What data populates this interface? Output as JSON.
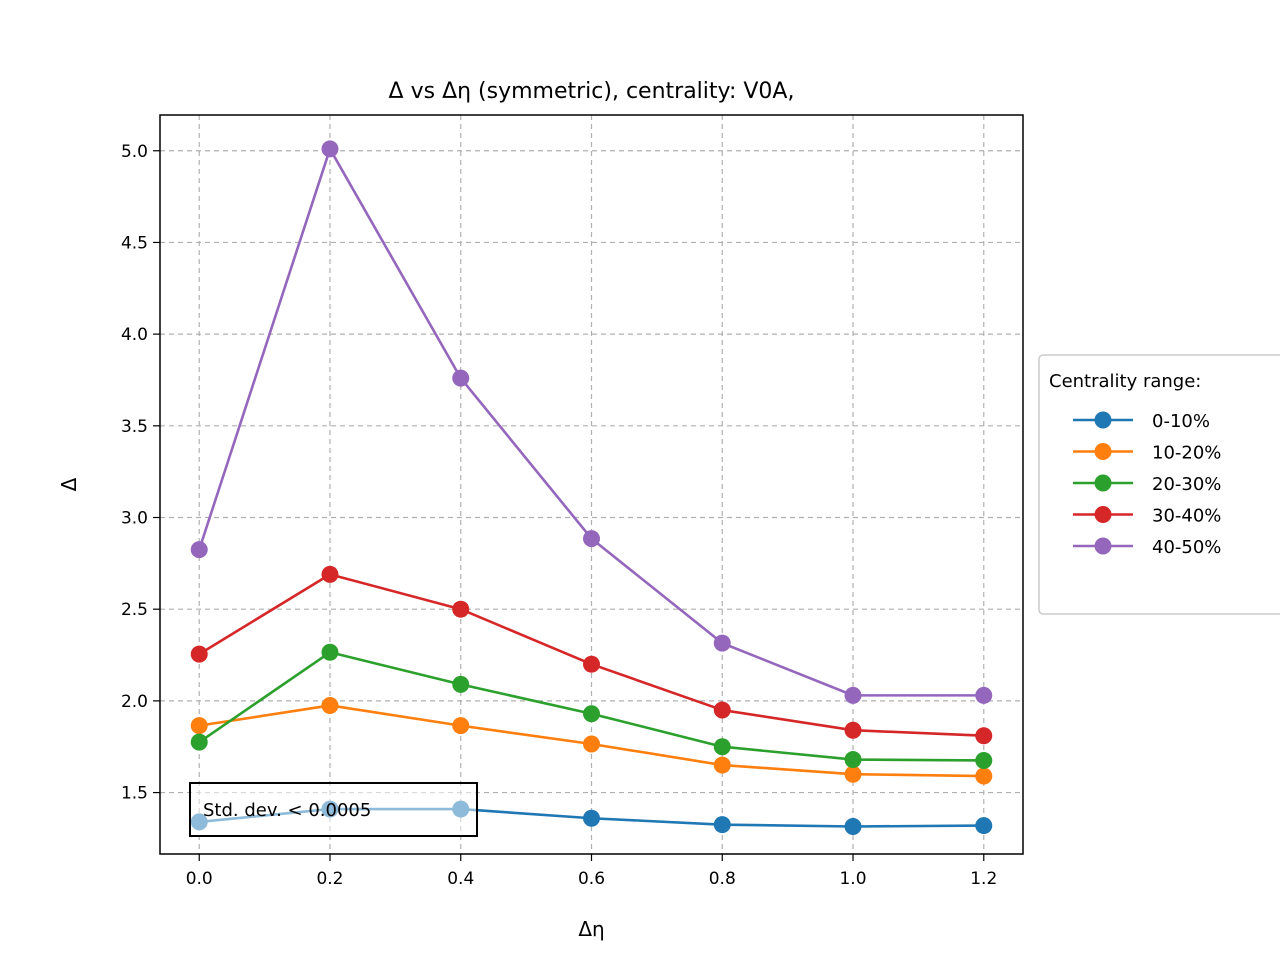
{
  "chart_data": {
    "type": "line",
    "title": "Δ vs Δη (symmetric), centrality: V0A,",
    "xlabel": "Δη",
    "ylabel": "Δ",
    "xlim": [
      -0.06,
      1.26
    ],
    "ylim": [
      1.165,
      5.195
    ],
    "xticks": [
      0.0,
      0.2,
      0.4,
      0.6,
      0.8,
      1.0,
      1.2
    ],
    "xtick_labels": [
      "0.0",
      "0.2",
      "0.4",
      "0.6",
      "0.8",
      "1.0",
      "1.2"
    ],
    "yticks": [
      1.5,
      2.0,
      2.5,
      3.0,
      3.5,
      4.0,
      4.5,
      5.0
    ],
    "ytick_labels": [
      "1.5",
      "2.0",
      "2.5",
      "3.0",
      "3.5",
      "4.0",
      "4.5",
      "5.0"
    ],
    "grid": true,
    "legend_title": "Centrality range:",
    "legend_placement": "right-outside",
    "x": [
      0.0,
      0.2,
      0.4,
      0.6,
      0.8,
      1.0,
      1.2
    ],
    "series": [
      {
        "name": "0-10%",
        "color": "#1f77b4",
        "values": [
          1.34,
          1.41,
          1.41,
          1.36,
          1.325,
          1.315,
          1.32
        ]
      },
      {
        "name": "10-20%",
        "color": "#ff7f0e",
        "values": [
          1.865,
          1.975,
          1.865,
          1.765,
          1.65,
          1.6,
          1.59
        ]
      },
      {
        "name": "20-30%",
        "color": "#2ca02c",
        "values": [
          1.775,
          2.265,
          2.09,
          1.93,
          1.75,
          1.68,
          1.675
        ]
      },
      {
        "name": "30-40%",
        "color": "#d62728",
        "values": [
          2.255,
          2.69,
          2.5,
          2.2,
          1.95,
          1.84,
          1.81
        ]
      },
      {
        "name": "40-50%",
        "color": "#9467bd",
        "values": [
          2.825,
          5.01,
          3.76,
          2.885,
          2.315,
          2.03,
          2.03
        ]
      }
    ],
    "annotation": "Std. dev. < 0.0005"
  }
}
